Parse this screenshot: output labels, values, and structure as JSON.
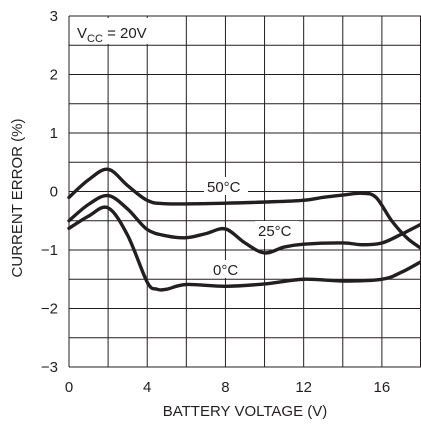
{
  "chart_data": {
    "type": "line",
    "xlabel": "BATTERY VOLTAGE (V)",
    "ylabel": "CURRENT ERROR (%)",
    "annotation": {
      "prefix": "V",
      "subscript": "CC",
      "suffix": " = 20V"
    },
    "xlim": [
      0,
      18
    ],
    "ylim": [
      -3,
      3
    ],
    "x_ticks": [
      0,
      4,
      8,
      12,
      16
    ],
    "x_tick_labels": [
      "0",
      "4",
      "8",
      "12",
      "16"
    ],
    "y_ticks": [
      3,
      2,
      1,
      0,
      -1,
      -2,
      -3
    ],
    "y_tick_labels": [
      "3",
      "2",
      "1",
      "0",
      "−1",
      "−2",
      "−3"
    ],
    "grid": true,
    "series": [
      {
        "name": "50°C",
        "points": [
          [
            0,
            -0.1
          ],
          [
            1,
            0.2
          ],
          [
            2,
            0.38
          ],
          [
            3,
            0.1
          ],
          [
            4,
            -0.15
          ],
          [
            5,
            -0.21
          ],
          [
            8,
            -0.2
          ],
          [
            10,
            -0.18
          ],
          [
            12,
            -0.15
          ],
          [
            13,
            -0.1
          ],
          [
            14,
            -0.06
          ],
          [
            15,
            -0.03
          ],
          [
            15.7,
            -0.1
          ],
          [
            16.5,
            -0.5
          ],
          [
            17.3,
            -0.8
          ],
          [
            18,
            -0.97
          ]
        ]
      },
      {
        "name": "25°C",
        "points": [
          [
            0,
            -0.5
          ],
          [
            1,
            -0.22
          ],
          [
            2,
            -0.07
          ],
          [
            3,
            -0.3
          ],
          [
            4,
            -0.65
          ],
          [
            5,
            -0.76
          ],
          [
            6,
            -0.79
          ],
          [
            7,
            -0.72
          ],
          [
            8,
            -0.64
          ],
          [
            9,
            -0.88
          ],
          [
            10,
            -1.05
          ],
          [
            11,
            -0.95
          ],
          [
            12,
            -0.9
          ],
          [
            14,
            -0.88
          ],
          [
            15,
            -0.91
          ],
          [
            16,
            -0.88
          ],
          [
            17,
            -0.73
          ],
          [
            18,
            -0.56
          ]
        ]
      },
      {
        "name": "0°C",
        "points": [
          [
            0,
            -0.63
          ],
          [
            1,
            -0.42
          ],
          [
            2,
            -0.28
          ],
          [
            3,
            -0.75
          ],
          [
            4,
            -1.55
          ],
          [
            4.5,
            -1.67
          ],
          [
            5,
            -1.67
          ],
          [
            6,
            -1.59
          ],
          [
            8,
            -1.62
          ],
          [
            10,
            -1.58
          ],
          [
            12,
            -1.5
          ],
          [
            14,
            -1.53
          ],
          [
            16,
            -1.5
          ],
          [
            17,
            -1.38
          ],
          [
            18,
            -1.2
          ]
        ]
      }
    ]
  }
}
